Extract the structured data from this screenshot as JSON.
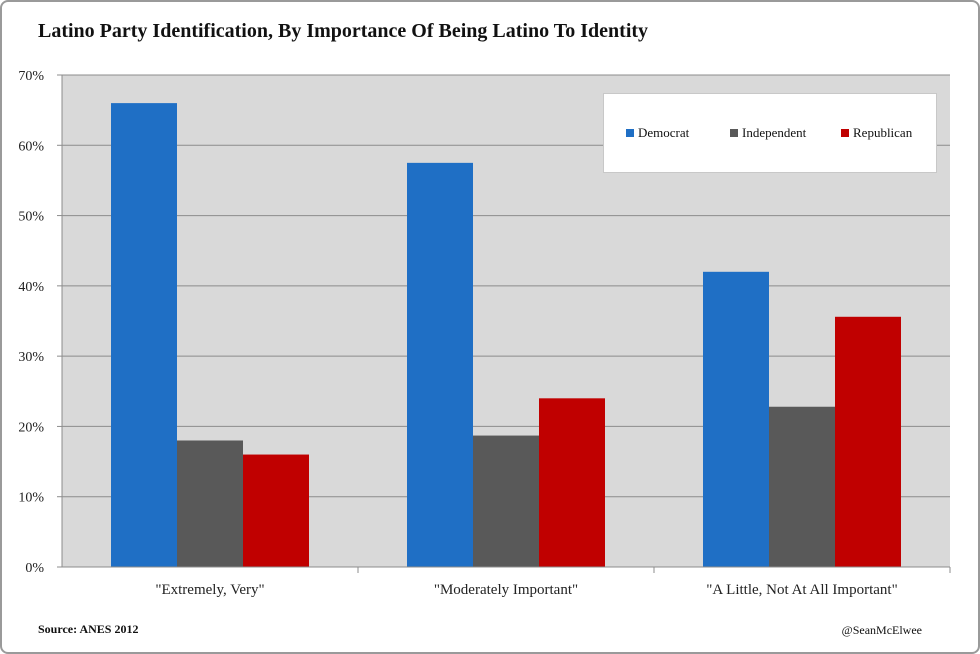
{
  "chart_data": {
    "type": "bar",
    "title": "Latino Party Identification, By Importance Of Being Latino To Identity",
    "categories": [
      "\"Extremely, Very\"",
      "\"Moderately Important\"",
      "\"A Little, Not At All Important\""
    ],
    "series": [
      {
        "name": "Democrat",
        "color": "#1f6fc5",
        "values": [
          66,
          57.5,
          42
        ]
      },
      {
        "name": "Independent",
        "color": "#595959",
        "values": [
          18,
          18.7,
          22.8
        ]
      },
      {
        "name": "Republican",
        "color": "#c00000",
        "values": [
          16,
          24,
          35.6
        ]
      }
    ],
    "yticks": [
      "0%",
      "10%",
      "20%",
      "30%",
      "40%",
      "50%",
      "60%",
      "70%"
    ],
    "ylim": [
      0,
      70
    ],
    "xlabel": "",
    "ylabel": "",
    "legend_position": "top-right",
    "grid": true
  },
  "footer": {
    "source": "Source: ANES 2012",
    "credit": "@SeanMcElwee"
  }
}
